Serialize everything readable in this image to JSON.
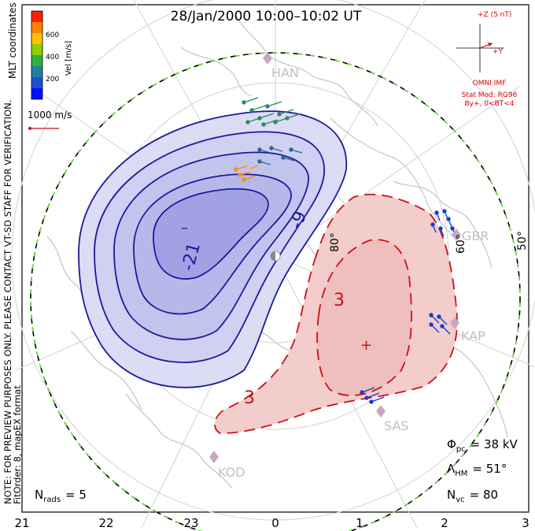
{
  "title": "28/Jan/2000 10:00–10:02 UT",
  "coordinates_label": "MLT coordinates",
  "velocity_scale": {
    "unit_label": "Vel [m/s]",
    "ticks": [
      "600",
      "400",
      "200"
    ],
    "colors": [
      "#ff2000",
      "#ff8000",
      "#ffc000",
      "#90d000",
      "#30b040",
      "#2080a0",
      "#2050d0",
      "#0010ff"
    ]
  },
  "reference_vector_label": "1000 m/s",
  "disclaimer": "NOTE: FOR PREVIEW PURPOSES ONLY. PLEASE CONTACT VT-SD STAFF FOR VERIFICATION.",
  "fit_info": "FitOrder: 8, mapEX format",
  "imf": {
    "z_label": "+Z (5 nT)",
    "y_label": "+Y",
    "source": "OMNI IMF",
    "model_line1": "Stat Mod: RG96",
    "model_line2": "By+, 0<BT<4"
  },
  "stations": [
    "HAN",
    "GBR",
    "KAP",
    "SAS",
    "KOD"
  ],
  "latitude_labels": [
    "80°",
    "60°",
    "50°"
  ],
  "contour_labels": {
    "negative": [
      "-21",
      "-9"
    ],
    "positive": [
      "3",
      "3"
    ]
  },
  "extremum_markers": [
    "–",
    "+"
  ],
  "stats": {
    "phi_label": "Φ",
    "phi_sub": "pc",
    "phi_value": "= 38 kV",
    "lambda_label": "Λ",
    "lambda_sub": "HM",
    "lambda_value": "= 51°",
    "nvc_label": "N",
    "nvc_sub": "vc",
    "nvc_value": "= 80",
    "nrads_label": "N",
    "nrads_sub": "rads",
    "nrads_value": "= 5"
  },
  "mlt_axis": [
    "21",
    "22",
    "23",
    "0",
    "1",
    "2",
    "3"
  ],
  "colors": {
    "negative_contour": "#1a1aa0",
    "negative_fill": "#c8c8f0",
    "positive_contour": "#cc1111",
    "positive_fill": "#f3cccc",
    "coastline": "#c8c8c8",
    "grid": "#d8d8d8",
    "station": "#c8a8c0",
    "imf_text": "#dd0000"
  }
}
